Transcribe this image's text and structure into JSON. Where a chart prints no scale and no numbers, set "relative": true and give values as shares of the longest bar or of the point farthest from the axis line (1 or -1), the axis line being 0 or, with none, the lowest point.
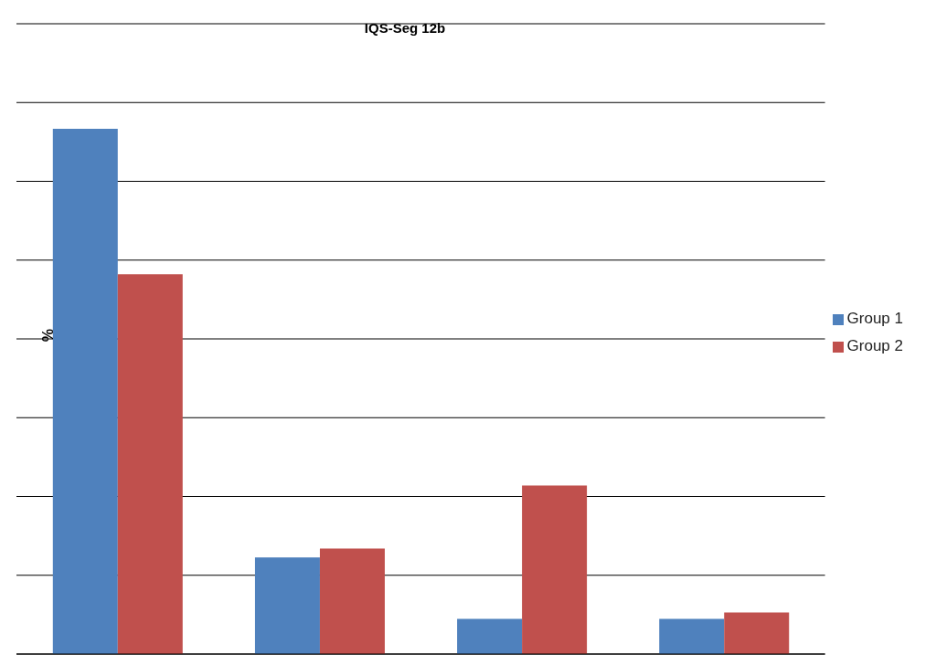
{
  "chart_data": {
    "type": "bar",
    "title": "IQS-Seg 12b",
    "ylabel": "%",
    "relative": true,
    "categories": [
      null,
      null,
      null,
      null
    ],
    "series": [
      {
        "name": "Group 1",
        "color": "#4f81bd",
        "values": [
          1,
          0.184,
          0.067,
          0.067
        ]
      },
      {
        "name": "Group 2",
        "color": "#c0504d",
        "values": [
          0.723,
          0.201,
          0.321,
          0.079
        ]
      }
    ],
    "grid": "y",
    "legend": "right"
  }
}
